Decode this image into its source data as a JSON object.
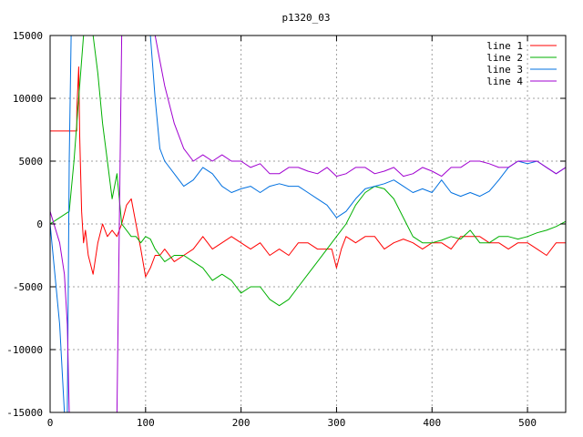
{
  "chart_data": {
    "type": "line",
    "title": "p1320_03",
    "xlabel": "",
    "ylabel": "",
    "xlim": [
      0,
      540
    ],
    "ylim": [
      -15000,
      15000
    ],
    "xticks": [
      0,
      100,
      200,
      300,
      400,
      500
    ],
    "yticks": [
      -15000,
      -10000,
      -5000,
      0,
      5000,
      10000,
      15000
    ],
    "grid": true,
    "legend_position": "top-right",
    "series": [
      {
        "name": "line 1",
        "color": "#ff0000",
        "x": [
          0,
          28,
          28,
          30,
          31,
          33,
          35,
          37,
          40,
          45,
          50,
          55,
          60,
          65,
          70,
          75,
          80,
          85,
          90,
          95,
          100,
          105,
          110,
          115,
          120,
          130,
          140,
          150,
          160,
          170,
          180,
          190,
          200,
          210,
          220,
          230,
          240,
          250,
          260,
          270,
          280,
          290,
          295,
          300,
          305,
          310,
          320,
          330,
          340,
          350,
          360,
          370,
          380,
          390,
          400,
          410,
          420,
          430,
          440,
          450,
          460,
          470,
          480,
          490,
          500,
          510,
          520,
          530,
          540
        ],
        "y": [
          7400,
          7400,
          9000,
          12500,
          7000,
          1000,
          -1500,
          -500,
          -2500,
          -4000,
          -1500,
          0,
          -1000,
          -500,
          -1000,
          0,
          1500,
          2000,
          0,
          -2000,
          -4200,
          -3500,
          -2500,
          -2500,
          -2000,
          -3000,
          -2500,
          -2000,
          -1000,
          -2000,
          -1500,
          -1000,
          -1500,
          -2000,
          -1500,
          -2500,
          -2000,
          -2500,
          -1500,
          -1500,
          -2000,
          -2000,
          -2000,
          -3500,
          -2000,
          -1000,
          -1500,
          -1000,
          -1000,
          -2000,
          -1500,
          -1200,
          -1500,
          -2000,
          -1500,
          -1500,
          -2000,
          -1000,
          -1000,
          -1000,
          -1500,
          -1500,
          -2000,
          -1500,
          -1500,
          -2000,
          -2500,
          -1500,
          -1500
        ]
      },
      {
        "name": "line 2",
        "color": "#00b000",
        "x": [
          0,
          20,
          25,
          30,
          35,
          40,
          45,
          50,
          55,
          60,
          65,
          70,
          75,
          80,
          85,
          90,
          95,
          100,
          105,
          110,
          115,
          120,
          130,
          140,
          150,
          160,
          170,
          180,
          190,
          200,
          210,
          220,
          230,
          240,
          250,
          260,
          270,
          280,
          290,
          300,
          310,
          320,
          330,
          340,
          350,
          360,
          370,
          380,
          390,
          400,
          410,
          420,
          430,
          440,
          450,
          460,
          470,
          480,
          490,
          500,
          510,
          520,
          530,
          540
        ],
        "y": [
          0,
          1000,
          5000,
          10000,
          15000,
          15000,
          15000,
          12000,
          8000,
          5000,
          2000,
          4000,
          0,
          -500,
          -1000,
          -1000,
          -1500,
          -1000,
          -1200,
          -2000,
          -2500,
          -3000,
          -2500,
          -2500,
          -3000,
          -3500,
          -4500,
          -4000,
          -4500,
          -5500,
          -5000,
          -5000,
          -6000,
          -6500,
          -6000,
          -5000,
          -4000,
          -3000,
          -2000,
          -1000,
          0,
          1500,
          2500,
          3000,
          2800,
          2000,
          500,
          -1000,
          -1500,
          -1500,
          -1300,
          -1000,
          -1200,
          -500,
          -1500,
          -1500,
          -1000,
          -1000,
          -1200,
          -1000,
          -700,
          -500,
          -200,
          200
        ]
      },
      {
        "name": "line 3",
        "color": "#0070e0",
        "x": [
          0,
          10,
          15,
          18,
          20,
          22,
          25,
          30,
          40,
          50,
          60,
          70,
          80,
          90,
          95,
          100,
          105,
          110,
          115,
          120,
          130,
          140,
          150,
          160,
          170,
          180,
          190,
          200,
          210,
          220,
          230,
          240,
          250,
          260,
          270,
          280,
          290,
          300,
          310,
          320,
          330,
          340,
          350,
          360,
          370,
          380,
          390,
          400,
          410,
          420,
          430,
          440,
          450,
          460,
          470,
          480,
          490,
          500,
          510,
          520,
          530,
          540
        ],
        "y": [
          0,
          -8000,
          -15000,
          -15000,
          5000,
          15000,
          15000,
          15000,
          15000,
          15000,
          15000,
          15000,
          15000,
          15000,
          15000,
          15000,
          15000,
          10000,
          6000,
          5000,
          4000,
          3000,
          3500,
          4500,
          4000,
          3000,
          2500,
          2800,
          3000,
          2500,
          3000,
          3200,
          3000,
          3000,
          2500,
          2000,
          1500,
          500,
          1000,
          2000,
          2800,
          3000,
          3200,
          3500,
          3000,
          2500,
          2800,
          2500,
          3500,
          2500,
          2200,
          2500,
          2200,
          2600,
          3500,
          4500,
          5000,
          4800,
          5000,
          4500,
          4000,
          4500
        ]
      },
      {
        "name": "line 4",
        "color": "#a000d0",
        "x": [
          0,
          10,
          15,
          18,
          20,
          25,
          30,
          35,
          40,
          45,
          50,
          55,
          60,
          65,
          70,
          75,
          80,
          85,
          90,
          95,
          100,
          105,
          110,
          115,
          120,
          130,
          140,
          150,
          160,
          170,
          180,
          190,
          200,
          210,
          220,
          230,
          240,
          250,
          260,
          270,
          280,
          290,
          300,
          310,
          320,
          330,
          340,
          350,
          360,
          370,
          380,
          390,
          400,
          410,
          420,
          430,
          440,
          450,
          460,
          470,
          480,
          490,
          500,
          510,
          520,
          530,
          540
        ],
        "y": [
          1000,
          -1500,
          -4000,
          -8000,
          -15000,
          -15000,
          -15000,
          -15000,
          -15000,
          -15000,
          -15000,
          -15000,
          -15000,
          -15000,
          -15000,
          15000,
          15000,
          15000,
          15000,
          15000,
          15000,
          15000,
          15000,
          13000,
          11000,
          8000,
          6000,
          5000,
          5500,
          5000,
          5500,
          5000,
          5000,
          4500,
          4800,
          4000,
          4000,
          4500,
          4500,
          4200,
          4000,
          4500,
          3800,
          4000,
          4500,
          4500,
          4000,
          4200,
          4500,
          3800,
          4000,
          4500,
          4200,
          3800,
          4500,
          4500,
          5000,
          5000,
          4800,
          4500,
          4500,
          5000,
          5000,
          5000,
          4500,
          4000,
          4500
        ]
      }
    ]
  }
}
